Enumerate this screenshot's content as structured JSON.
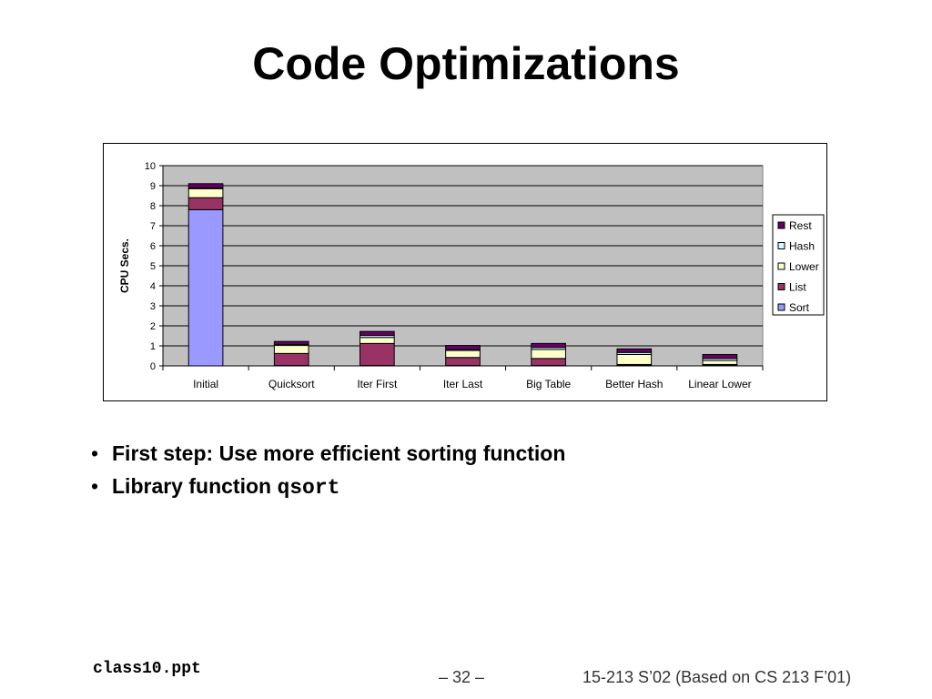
{
  "slide": {
    "title": "Code Optimizations",
    "bullets": [
      {
        "text": "First step: Use more efficient sorting function",
        "code": ""
      },
      {
        "text": "Library function ",
        "code": "qsort"
      }
    ],
    "bullet_glyph": "•",
    "footer": {
      "file": "class10.ppt",
      "page": "– 32 –",
      "course": "15-213 S’02 (Based on CS 213 F’01)"
    }
  },
  "chart_data": {
    "type": "bar",
    "stacked": true,
    "title": "",
    "xlabel": "",
    "ylabel": "CPU Secs.",
    "ylim": [
      0,
      10
    ],
    "yticks": [
      0,
      1,
      2,
      3,
      4,
      5,
      6,
      7,
      8,
      9,
      10
    ],
    "grid": true,
    "legend_position": "right",
    "categories": [
      "Initial",
      "Quicksort",
      "Iter First",
      "Iter Last",
      "Big Table",
      "Better Hash",
      "Linear Lower"
    ],
    "series": [
      {
        "name": "Sort",
        "color": "#9999ff",
        "values": [
          7.8,
          0.02,
          0.02,
          0.02,
          0.02,
          0.02,
          0.02
        ]
      },
      {
        "name": "List",
        "color": "#993366",
        "values": [
          0.6,
          0.6,
          1.1,
          0.4,
          0.35,
          0.05,
          0.05
        ]
      },
      {
        "name": "Lower",
        "color": "#ffffcc",
        "values": [
          0.45,
          0.4,
          0.3,
          0.35,
          0.45,
          0.5,
          0.2
        ]
      },
      {
        "name": "Hash",
        "color": "#ccffff",
        "values": [
          0.05,
          0.05,
          0.1,
          0.05,
          0.1,
          0.1,
          0.1
        ]
      },
      {
        "name": "Rest",
        "color": "#660066",
        "values": [
          0.2,
          0.15,
          0.2,
          0.2,
          0.2,
          0.18,
          0.2
        ]
      }
    ]
  }
}
